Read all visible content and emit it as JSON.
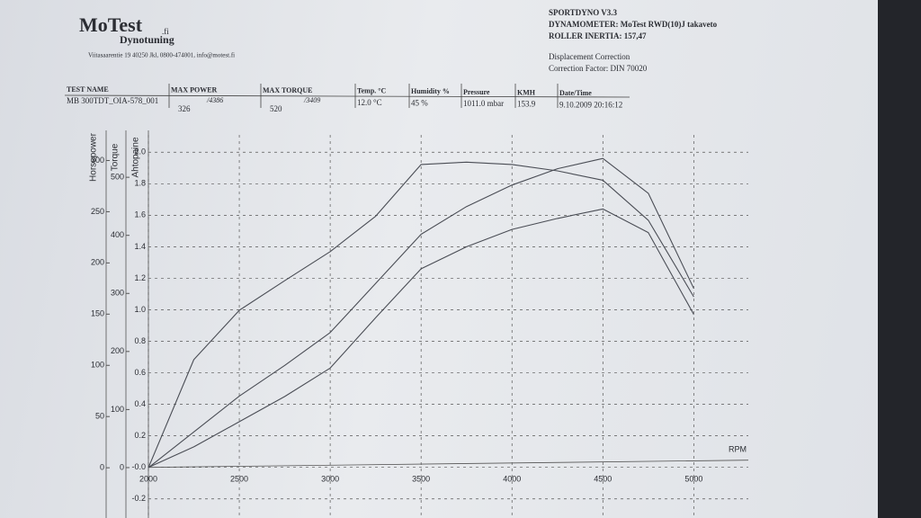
{
  "header": {
    "brand": "MoTest",
    "brand_suffix": ".fi",
    "subtitle": "Dynotuning",
    "address": "Viitasaarentie 19 40250 Jkl, 0800-474001, info@motest.fi"
  },
  "info": [
    "SPORTDYNO V3.3",
    "DYNAMOMETER: MoTest RWD(10)J takaveto",
    "ROLLER INERTIA: 157,47",
    "Displacement Correction",
    "Correction Factor: DIN 70020"
  ],
  "table": {
    "headers": [
      "TEST NAME",
      "MAX POWER",
      "MAX TORQUE",
      "Temp. °C",
      "Humidity %",
      "Pressure",
      "KMH",
      "Date/Time"
    ],
    "values": [
      "MB 300TDT_OIA-578_001",
      "326",
      "520",
      "12.0 °C",
      "45 %",
      "1011.0 mbar",
      "153.9",
      "9.10.2009 20:16:12"
    ],
    "rpm_at_max": [
      "/4386",
      "/3409"
    ]
  },
  "chart_data": {
    "type": "line",
    "xlabel": "RPM",
    "ylabel": "Horsepower",
    "y2label": "Torque",
    "y3label": "Ahtopaine",
    "x": [
      2000,
      2250,
      2500,
      2750,
      3000,
      3250,
      3500,
      3750,
      4000,
      4250,
      4500,
      4750,
      5000
    ],
    "xlim": [
      2000,
      5300
    ],
    "xticks": [
      2000,
      2500,
      3000,
      3500,
      4000,
      4500,
      5000
    ],
    "ylim": [
      -35,
      325
    ],
    "yticks": [
      0,
      50,
      100,
      150,
      200,
      250,
      300
    ],
    "y2lim": [
      -62,
      573
    ],
    "y2ticks": [
      0,
      100,
      200,
      300,
      400,
      500
    ],
    "y3lim": [
      -0.23,
      2.11
    ],
    "y3ticks": [
      {
        "value": -0.2,
        "label": "-0.2"
      },
      {
        "value": 0,
        "label": "-0.0"
      },
      0.2,
      0.4,
      0.6,
      0.8,
      {
        "value": 1,
        "label": "1.0"
      },
      1.2,
      1.4,
      1.6,
      1.8,
      {
        "value": 2,
        "label": "2.0"
      }
    ],
    "grid": true,
    "series": [
      {
        "axis": "y2",
        "color": "#4a4d55",
        "values": [
          0,
          186,
          271,
          322,
          372,
          433,
          522,
          526,
          522,
          511,
          495,
          426,
          294
        ]
      },
      {
        "axis": "y",
        "color": "#4a4d55",
        "values": [
          0,
          35,
          70,
          100,
          132,
          180,
          228,
          255,
          276,
          292,
          302,
          268,
          175
        ]
      },
      {
        "axis": "y3",
        "color": "#4a4d55",
        "values": [
          0,
          0.13,
          0.29,
          0.45,
          0.63,
          0.95,
          1.26,
          1.4,
          1.51,
          1.58,
          1.64,
          1.49,
          0.97
        ]
      }
    ]
  }
}
